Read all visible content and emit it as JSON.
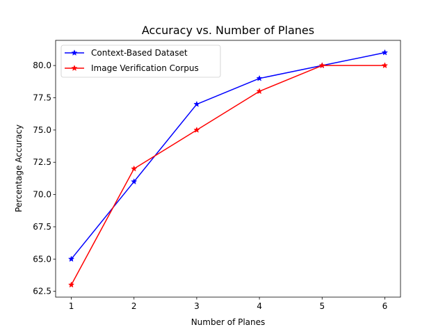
{
  "chart_data": {
    "type": "line",
    "title": "Accuracy vs. Number of Planes",
    "xlabel": "Number of Planes",
    "ylabel": "Percentage Accuracy",
    "x": [
      1,
      2,
      3,
      4,
      5,
      6
    ],
    "xlim": [
      0.75,
      6.25
    ],
    "ylim": [
      62.05,
      81.95
    ],
    "xticks": [
      1,
      2,
      3,
      4,
      5,
      6
    ],
    "xtick_labels": [
      "1",
      "2",
      "3",
      "4",
      "5",
      "6"
    ],
    "yticks": [
      62.5,
      65.0,
      67.5,
      70.0,
      72.5,
      75.0,
      77.5,
      80.0
    ],
    "ytick_labels": [
      "62.5",
      "65.0",
      "67.5",
      "70.0",
      "72.5",
      "75.0",
      "77.5",
      "80.0"
    ],
    "grid": false,
    "legend_position": "top-left",
    "marker": "star",
    "series": [
      {
        "name": "Context-Based Dataset",
        "color": "#0000ff",
        "values": [
          65,
          71,
          77,
          79,
          80,
          81
        ]
      },
      {
        "name": "Image Verification Corpus",
        "color": "#ff0000",
        "values": [
          63,
          72,
          75,
          78,
          80,
          80
        ]
      }
    ]
  }
}
